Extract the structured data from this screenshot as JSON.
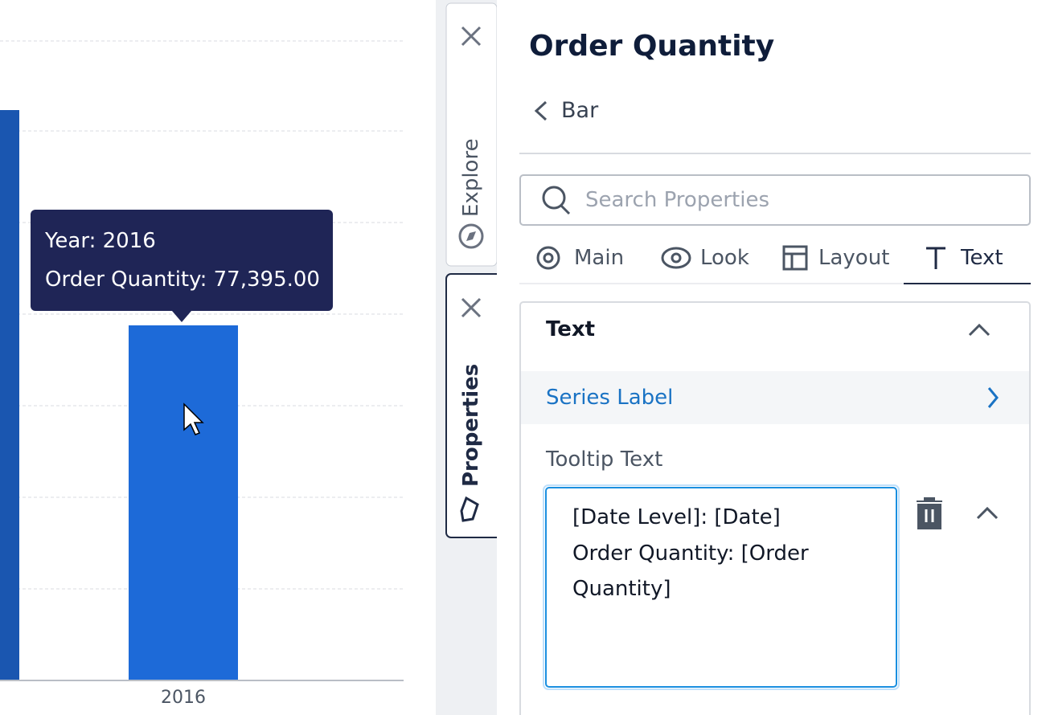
{
  "chart": {
    "x_label": "2016",
    "tooltip": [
      "Year: 2016",
      "Order Quantity: 77,395.00"
    ]
  },
  "side_tabs": [
    "Explore",
    "Properties"
  ],
  "panel": {
    "title": "Order Quantity",
    "breadcrumb": "Bar",
    "search_placeholder": "Search Properties",
    "tabs": [
      "Main",
      "Look",
      "Layout",
      "Text"
    ],
    "section": "Text",
    "series_label": "Series Label",
    "field_label": "Tooltip Text",
    "field_lines": [
      "[Date Level]: [Date]",
      "Order Quantity: [Order Quantity]"
    ]
  }
}
